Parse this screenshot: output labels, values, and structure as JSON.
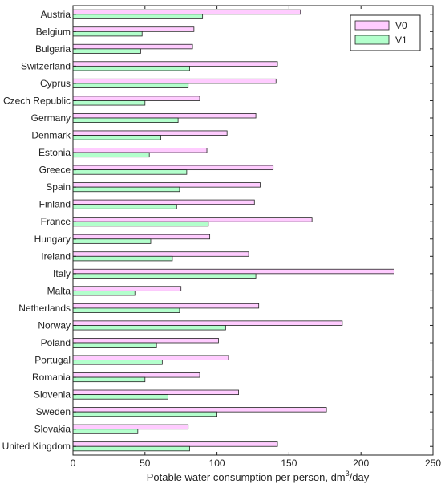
{
  "chart_data": {
    "type": "bar",
    "orientation": "horizontal",
    "categories": [
      "Austria",
      "Belgium",
      "Bulgaria",
      "Switzerland",
      "Cyprus",
      "Czech Republic",
      "Germany",
      "Denmark",
      "Estonia",
      "Greece",
      "Spain",
      "Finland",
      "France",
      "Hungary",
      "Ireland",
      "Italy",
      "Malta",
      "Netherlands",
      "Norway",
      "Poland",
      "Portugal",
      "Romania",
      "Slovenia",
      "Sweden",
      "Slovakia",
      "United Kingdom"
    ],
    "series": [
      {
        "name": "V0",
        "color": "#ffccff",
        "values": [
          158,
          84,
          83,
          142,
          141,
          88,
          127,
          107,
          93,
          139,
          130,
          126,
          166,
          95,
          122,
          223,
          75,
          129,
          187,
          101,
          108,
          88,
          115,
          176,
          80,
          142
        ]
      },
      {
        "name": "V1",
        "color": "#b3ffcc",
        "values": [
          90,
          48,
          47,
          81,
          80,
          50,
          73,
          61,
          53,
          79,
          74,
          72,
          94,
          54,
          69,
          127,
          43,
          74,
          106,
          58,
          62,
          50,
          66,
          100,
          45,
          81
        ]
      }
    ],
    "xlabel": "Potable water consumption per person, dm",
    "xlabel_superscript": "3",
    "xlabel_suffix": "/day",
    "ylabel": "",
    "xlim": [
      0,
      250
    ],
    "xticks": [
      0,
      50,
      100,
      150,
      200,
      250
    ],
    "grid": false,
    "legend_position": "top-right"
  }
}
